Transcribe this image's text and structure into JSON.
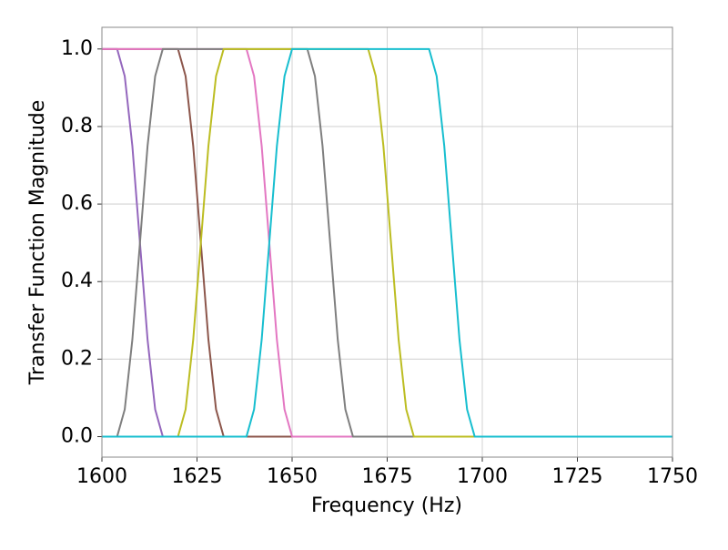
{
  "chart_data": {
    "type": "line",
    "xlabel": "Frequency (Hz)",
    "ylabel": "Transfer Function Magnitude",
    "x": [
      1600,
      1602,
      1604,
      1606,
      1608,
      1610,
      1612,
      1614,
      1616,
      1618,
      1620,
      1622,
      1624,
      1626,
      1628,
      1630,
      1632,
      1634,
      1636,
      1638,
      1640,
      1642,
      1644,
      1646,
      1648,
      1650,
      1652,
      1654,
      1656,
      1658,
      1660,
      1662,
      1664,
      1666,
      1668,
      1670,
      1672,
      1674,
      1676,
      1678,
      1680,
      1682,
      1684,
      1686,
      1688,
      1690,
      1692,
      1694,
      1696,
      1698,
      1700,
      1710,
      1720,
      1730,
      1740,
      1750
    ],
    "series": [
      {
        "color": "#9467bd",
        "values": [
          1,
          1,
          1,
          0.93,
          0.75,
          0.5,
          0.25,
          0.07,
          0,
          0,
          0,
          0,
          0,
          0,
          0,
          0,
          0,
          0,
          0,
          0,
          0,
          0,
          0,
          0,
          0,
          0,
          0,
          0,
          0,
          0,
          0,
          0,
          0,
          0,
          0,
          0,
          0,
          0,
          0,
          0,
          0,
          0,
          0,
          0,
          0,
          0,
          0,
          0,
          0,
          0,
          0,
          0,
          0,
          0,
          0,
          0
        ]
      },
      {
        "color": "#8c564b",
        "values": [
          1,
          1,
          1,
          1,
          1,
          1,
          1,
          1,
          1,
          1,
          1,
          0.93,
          0.75,
          0.5,
          0.25,
          0.07,
          0,
          0,
          0,
          0,
          0,
          0,
          0,
          0,
          0,
          0,
          0,
          0,
          0,
          0,
          0,
          0,
          0,
          0,
          0,
          0,
          0,
          0,
          0,
          0,
          0,
          0,
          0,
          0,
          0,
          0,
          0,
          0,
          0,
          0,
          0,
          0,
          0,
          0,
          0,
          0
        ]
      },
      {
        "color": "#e377c2",
        "values": [
          1,
          1,
          1,
          1,
          1,
          1,
          1,
          1,
          1,
          1,
          1,
          1,
          1,
          1,
          1,
          1,
          1,
          1,
          1,
          1,
          0.93,
          0.75,
          0.5,
          0.25,
          0.07,
          0,
          0,
          0,
          0,
          0,
          0,
          0,
          0,
          0,
          0,
          0,
          0,
          0,
          0,
          0,
          0,
          0,
          0,
          0,
          0,
          0,
          0,
          0,
          0,
          0,
          0,
          0,
          0,
          0,
          0,
          0
        ]
      },
      {
        "color": "#7f7f7f",
        "values": [
          0,
          0,
          0,
          0.07,
          0.25,
          0.5,
          0.75,
          0.93,
          1,
          1,
          1,
          1,
          1,
          1,
          1,
          1,
          1,
          1,
          1,
          1,
          1,
          1,
          1,
          1,
          1,
          1,
          1,
          1,
          0.93,
          0.75,
          0.5,
          0.25,
          0.07,
          0,
          0,
          0,
          0,
          0,
          0,
          0,
          0,
          0,
          0,
          0,
          0,
          0,
          0,
          0,
          0,
          0,
          0,
          0,
          0,
          0,
          0,
          0
        ]
      },
      {
        "color": "#bcbd22",
        "values": [
          0,
          0,
          0,
          0,
          0,
          0,
          0,
          0,
          0,
          0,
          0,
          0.07,
          0.25,
          0.5,
          0.75,
          0.93,
          1,
          1,
          1,
          1,
          1,
          1,
          1,
          1,
          1,
          1,
          1,
          1,
          1,
          1,
          1,
          1,
          1,
          1,
          1,
          1,
          0.93,
          0.75,
          0.5,
          0.25,
          0.07,
          0,
          0,
          0,
          0,
          0,
          0,
          0,
          0,
          0,
          0,
          0,
          0,
          0,
          0,
          0
        ]
      },
      {
        "color": "#17becf",
        "values": [
          0,
          0,
          0,
          0,
          0,
          0,
          0,
          0,
          0,
          0,
          0,
          0,
          0,
          0,
          0,
          0,
          0,
          0,
          0,
          0,
          0.07,
          0.25,
          0.5,
          0.75,
          0.93,
          1,
          1,
          1,
          1,
          1,
          1,
          1,
          1,
          1,
          1,
          1,
          1,
          1,
          1,
          1,
          1,
          1,
          1,
          1,
          0.93,
          0.75,
          0.5,
          0.25,
          0.07,
          0,
          0,
          0,
          0,
          0,
          0,
          0
        ]
      }
    ],
    "xlim": [
      1600,
      1750
    ],
    "xticks": [
      1600,
      1625,
      1650,
      1675,
      1700,
      1725,
      1750
    ],
    "ylim": [
      -0.053,
      1.056
    ],
    "yticks": [
      {
        "value": 0,
        "label": "0.0"
      },
      0.2,
      0.4,
      0.6,
      0.8,
      {
        "value": 1,
        "label": "1.0"
      }
    ],
    "grid": true
  }
}
